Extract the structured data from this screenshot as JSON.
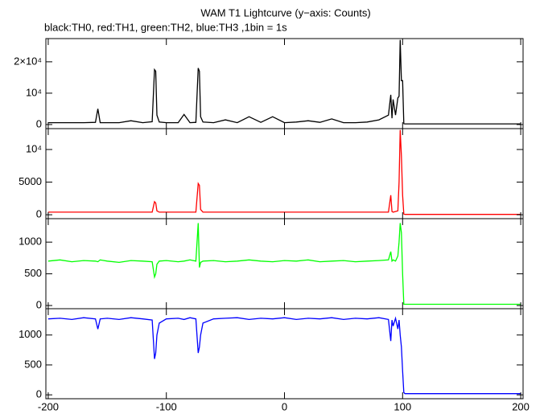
{
  "chart_data": {
    "type": "line",
    "title": "WAM T1 Lightcurve (y−axis: Counts)",
    "subtitle": "black:TH0, red:TH1, green:TH2, blue:TH3 ,1bin = 1s",
    "x": [
      -200,
      -190,
      -180,
      -170,
      -160,
      -158,
      -156,
      -150,
      -140,
      -130,
      -120,
      -112,
      -110,
      -109,
      -108,
      -106,
      -100,
      -90,
      -85,
      -80,
      -75,
      -73,
      -72,
      -71,
      -69,
      -60,
      -50,
      -40,
      -30,
      -20,
      -10,
      0,
      10,
      20,
      30,
      40,
      50,
      60,
      70,
      80,
      88,
      90,
      91,
      92,
      94,
      96,
      97,
      98,
      99,
      100,
      101,
      102,
      110,
      120,
      140,
      160,
      180,
      200
    ],
    "xlim": [
      -202,
      202
    ],
    "xticks": [
      -200,
      -100,
      0,
      100,
      200
    ],
    "panels": [
      {
        "color": "#000000",
        "ylim": [
          -1300,
          27400
        ],
        "yticks": [
          0,
          {
            "value": 10000,
            "label": "10⁴"
          },
          {
            "value": 20000,
            "label": "2×10⁴"
          }
        ],
        "values": [
          600,
          600,
          600,
          600,
          700,
          5000,
          600,
          600,
          600,
          1200,
          600,
          900,
          17500,
          17000,
          3000,
          800,
          600,
          600,
          3200,
          600,
          700,
          18000,
          17000,
          2500,
          800,
          600,
          1500,
          600,
          2500,
          700,
          2500,
          600,
          800,
          1200,
          700,
          1800,
          600,
          600,
          800,
          1500,
          3000,
          9500,
          2000,
          8000,
          3000,
          8500,
          9000,
          27000,
          14000,
          14000,
          300,
          200,
          200,
          200,
          200,
          200,
          200,
          200
        ]
      },
      {
        "color": "#ff0000",
        "ylim": [
          -600,
          13200
        ],
        "yticks": [
          0,
          5000,
          {
            "value": 10000,
            "label": "10⁴"
          }
        ],
        "values": [
          400,
          400,
          400,
          400,
          400,
          400,
          400,
          400,
          400,
          400,
          400,
          400,
          2000,
          1800,
          600,
          400,
          400,
          400,
          400,
          400,
          400,
          4800,
          4500,
          800,
          400,
          400,
          400,
          400,
          400,
          400,
          400,
          400,
          400,
          400,
          400,
          400,
          400,
          400,
          400,
          400,
          400,
          3000,
          500,
          400,
          500,
          600,
          5000,
          13000,
          9000,
          3000,
          100,
          50,
          50,
          50,
          50,
          50,
          50,
          50
        ]
      },
      {
        "color": "#00ff00",
        "ylim": [
          -50,
          1370
        ],
        "yticks": [
          0,
          500,
          1000
        ],
        "values": [
          700,
          720,
          690,
          710,
          700,
          690,
          720,
          700,
          680,
          710,
          700,
          690,
          450,
          500,
          650,
          700,
          710,
          690,
          700,
          720,
          700,
          1300,
          600,
          680,
          700,
          710,
          690,
          700,
          720,
          700,
          690,
          710,
          700,
          720,
          690,
          700,
          710,
          690,
          700,
          710,
          720,
          850,
          700,
          720,
          700,
          780,
          1000,
          1300,
          1150,
          500,
          20,
          20,
          20,
          20,
          20,
          20,
          20,
          20
        ]
      },
      {
        "color": "#0000ff",
        "ylim": [
          -65,
          1440
        ],
        "yticks": [
          0,
          500,
          1000
        ],
        "values": [
          1270,
          1280,
          1260,
          1290,
          1270,
          1100,
          1270,
          1280,
          1260,
          1290,
          1270,
          1250,
          600,
          700,
          1000,
          1200,
          1270,
          1280,
          1260,
          1290,
          1270,
          700,
          800,
          1000,
          1200,
          1270,
          1280,
          1290,
          1260,
          1280,
          1270,
          1290,
          1260,
          1280,
          1270,
          1290,
          1260,
          1280,
          1270,
          1290,
          1260,
          900,
          1250,
          1150,
          1280,
          1100,
          1250,
          1000,
          800,
          400,
          40,
          20,
          20,
          20,
          20,
          20,
          20,
          20
        ]
      }
    ]
  }
}
